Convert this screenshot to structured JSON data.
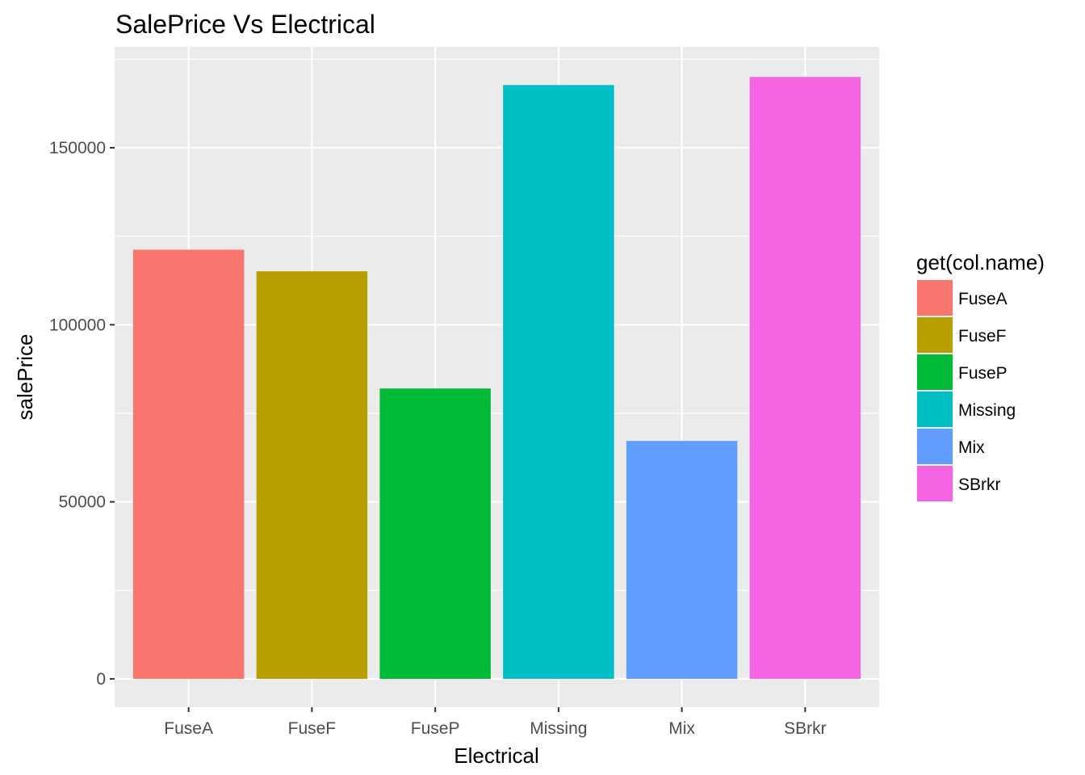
{
  "chart_data": {
    "type": "bar",
    "title": "SalePrice Vs Electrical",
    "xlabel": "Electrical",
    "ylabel": "salePrice",
    "categories": [
      "FuseA",
      "FuseF",
      "FuseP",
      "Missing",
      "Mix",
      "SBrkr"
    ],
    "values": [
      121200,
      115100,
      82000,
      167700,
      67200,
      170000
    ],
    "colors": [
      "#F8766D",
      "#B79F00",
      "#00BA38",
      "#00BFC4",
      "#619CFF",
      "#F564E3"
    ],
    "ylim": [
      -8000,
      178500
    ],
    "yticks": [
      0,
      50000,
      100000,
      150000
    ],
    "ytick_labels": [
      "0",
      "50000",
      "100000",
      "150000"
    ],
    "grid": true,
    "legend": {
      "title": "get(col.name)",
      "position": "right",
      "entries": [
        "FuseA",
        "FuseF",
        "FuseP",
        "Missing",
        "Mix",
        "SBrkr"
      ]
    },
    "panel_background": "#EBEBEB",
    "grid_color": "#FFFFFF"
  }
}
